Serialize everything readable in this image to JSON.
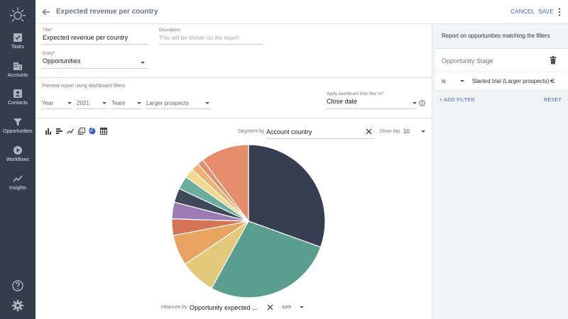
{
  "nav": {
    "items": [
      {
        "label": "Tasks",
        "icon": "tasks-icon"
      },
      {
        "label": "Accounts",
        "icon": "accounts-icon"
      },
      {
        "label": "Contacts",
        "icon": "contacts-icon"
      },
      {
        "label": "Opportunities",
        "icon": "funnel-icon"
      },
      {
        "label": "Workflows",
        "icon": "play-icon"
      },
      {
        "label": "Insights",
        "icon": "trend-icon"
      }
    ]
  },
  "header": {
    "title": "Expected revenue per country",
    "cancel_label": "CANCEL",
    "save_label": "SAVE"
  },
  "form": {
    "title_label": "Title",
    "title_value": "Expected revenue per country",
    "description_label": "Description",
    "description_placeholder": "This will be shown on the report",
    "entity_label": "Entity",
    "entity_value": "Opportunities",
    "required_mark": "*"
  },
  "preview": {
    "label": "Preview report using dashboard filters",
    "year_value": "Year",
    "year_number": "2021",
    "team_value": "Team",
    "segment_value": "Larger prospects",
    "time_filter_label": "Apply dashboard time filter to",
    "time_filter_value": "Close date"
  },
  "chart_controls": {
    "segment_by_label": "Segment by",
    "segment_by_value": "Account country",
    "show_top_label": "Show top",
    "show_top_value": "10",
    "measure_by_label": "Measure by",
    "measure_by_value": "Opportunity expected ...",
    "aggregation": "sum"
  },
  "chart_data": {
    "type": "pie",
    "values": [
      30.5,
      27.5,
      7.5,
      6.5,
      3.5,
      3.5,
      3.0,
      2.8,
      2.0,
      1.7,
      1.3,
      10.2
    ],
    "colors": [
      "#363e52",
      "#5a9e8f",
      "#e2c97c",
      "#e7a35f",
      "#d57355",
      "#9a7bb3",
      "#3f4858",
      "#6aae9f",
      "#f2d88c",
      "#efb272",
      "#e28e6c",
      "#e58d6a"
    ]
  },
  "right_panel": {
    "title": "Report on opportunities matching the filters",
    "filter_name": "Opportunity Stage",
    "operator": "is",
    "filter_value": "Started trial (Larger prospects) C",
    "add_filter_label": "ADD FILTER",
    "reset_label": "RESET"
  }
}
